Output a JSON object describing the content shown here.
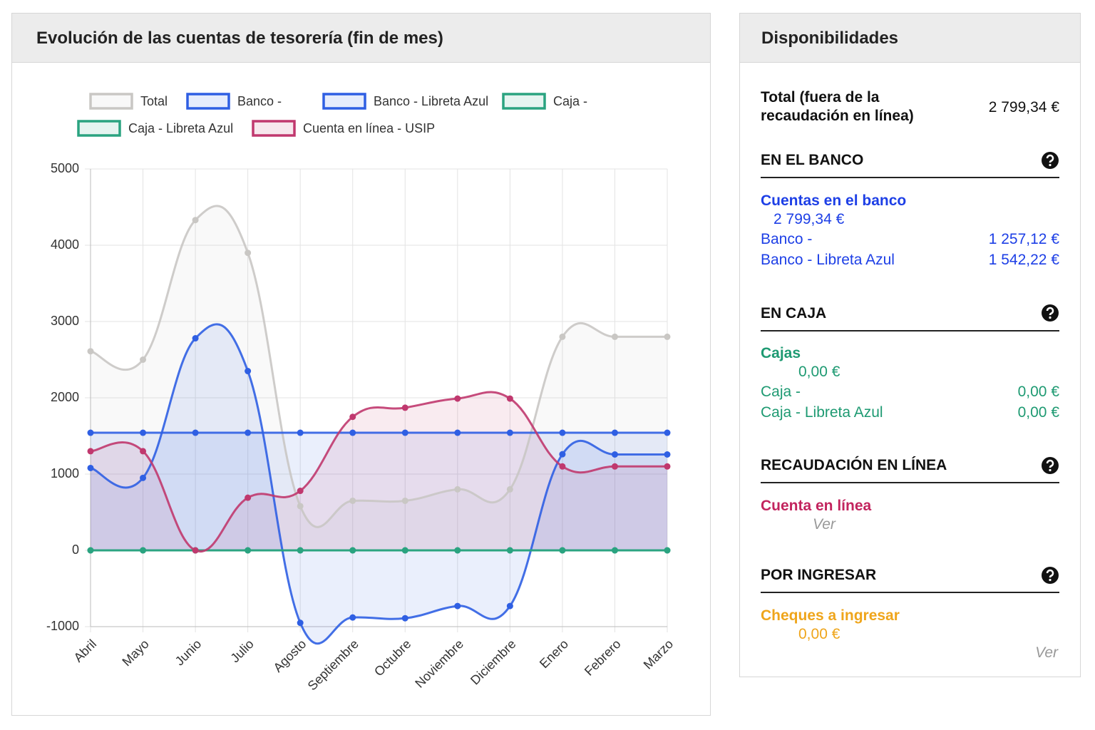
{
  "chart_data": {
    "type": "line",
    "title": "Evolución de las cuentas de tesorería (fin de mes)",
    "categories": [
      "Abril",
      "Mayo",
      "Junio",
      "Julio",
      "Agosto",
      "Septiembre",
      "Octubre",
      "Noviembre",
      "Diciembre",
      "Enero",
      "Febrero",
      "Marzo"
    ],
    "series": [
      {
        "name": "Total",
        "color": "#c9c7c4",
        "values": [
          2610,
          2500,
          4330,
          3900,
          580,
          650,
          650,
          800,
          800,
          2800,
          2800,
          2800
        ]
      },
      {
        "name": "Banco -",
        "color": "#2f5fe3",
        "values": [
          1080,
          950,
          2780,
          2350,
          -950,
          -880,
          -890,
          -730,
          -730,
          1260,
          1257,
          1257
        ]
      },
      {
        "name": "Banco - Libreta Azul",
        "color": "#2f5fe3",
        "values": [
          1542,
          1542,
          1542,
          1542,
          1542,
          1542,
          1542,
          1542,
          1542,
          1542,
          1542,
          1542
        ]
      },
      {
        "name": "Caja -",
        "color": "#2aa380",
        "values": [
          0,
          0,
          0,
          0,
          0,
          0,
          0,
          0,
          0,
          0,
          0,
          0
        ]
      },
      {
        "name": "Caja - Libreta Azul",
        "color": "#2aa380",
        "values": [
          0,
          0,
          0,
          0,
          0,
          0,
          0,
          0,
          0,
          0,
          0,
          0
        ]
      },
      {
        "name": "Cuenta en línea - USIP",
        "color": "#c0386e",
        "values": [
          1300,
          1300,
          0,
          690,
          780,
          1750,
          1870,
          1990,
          1990,
          1100,
          1100,
          1100
        ]
      }
    ],
    "ylim": [
      -1000,
      5000
    ],
    "yticks": [
      -1000,
      0,
      1000,
      2000,
      3000,
      4000,
      5000
    ],
    "grid": true,
    "legend": "top"
  },
  "panel": {
    "title": "Disponibilidades",
    "total": {
      "label": "Total (fuera de la recaudación en línea)",
      "value": "2 799,34 €"
    },
    "sections": [
      {
        "heading": "EN EL BANCO",
        "group": "Cuentas en el banco",
        "group_total": "2 799,34 €",
        "items": [
          {
            "label": "Banco -",
            "value": "1 257,12 €"
          },
          {
            "label": "Banco - Libreta Azul",
            "value": "1 542,22 €"
          }
        ]
      },
      {
        "heading": "EN CAJA",
        "group": "Cajas",
        "group_total": "0,00 €",
        "items": [
          {
            "label": "Caja -",
            "value": "0,00 €"
          },
          {
            "label": "Caja - Libreta Azul",
            "value": "0,00 €"
          }
        ]
      },
      {
        "heading": "RECAUDACIÓN EN LÍNEA",
        "group": "Cuenta en línea",
        "link": "Ver"
      },
      {
        "heading": "POR INGRESAR",
        "group": "Cheques a ingresar",
        "group_total": "0,00 €",
        "link": "Ver"
      }
    ]
  }
}
